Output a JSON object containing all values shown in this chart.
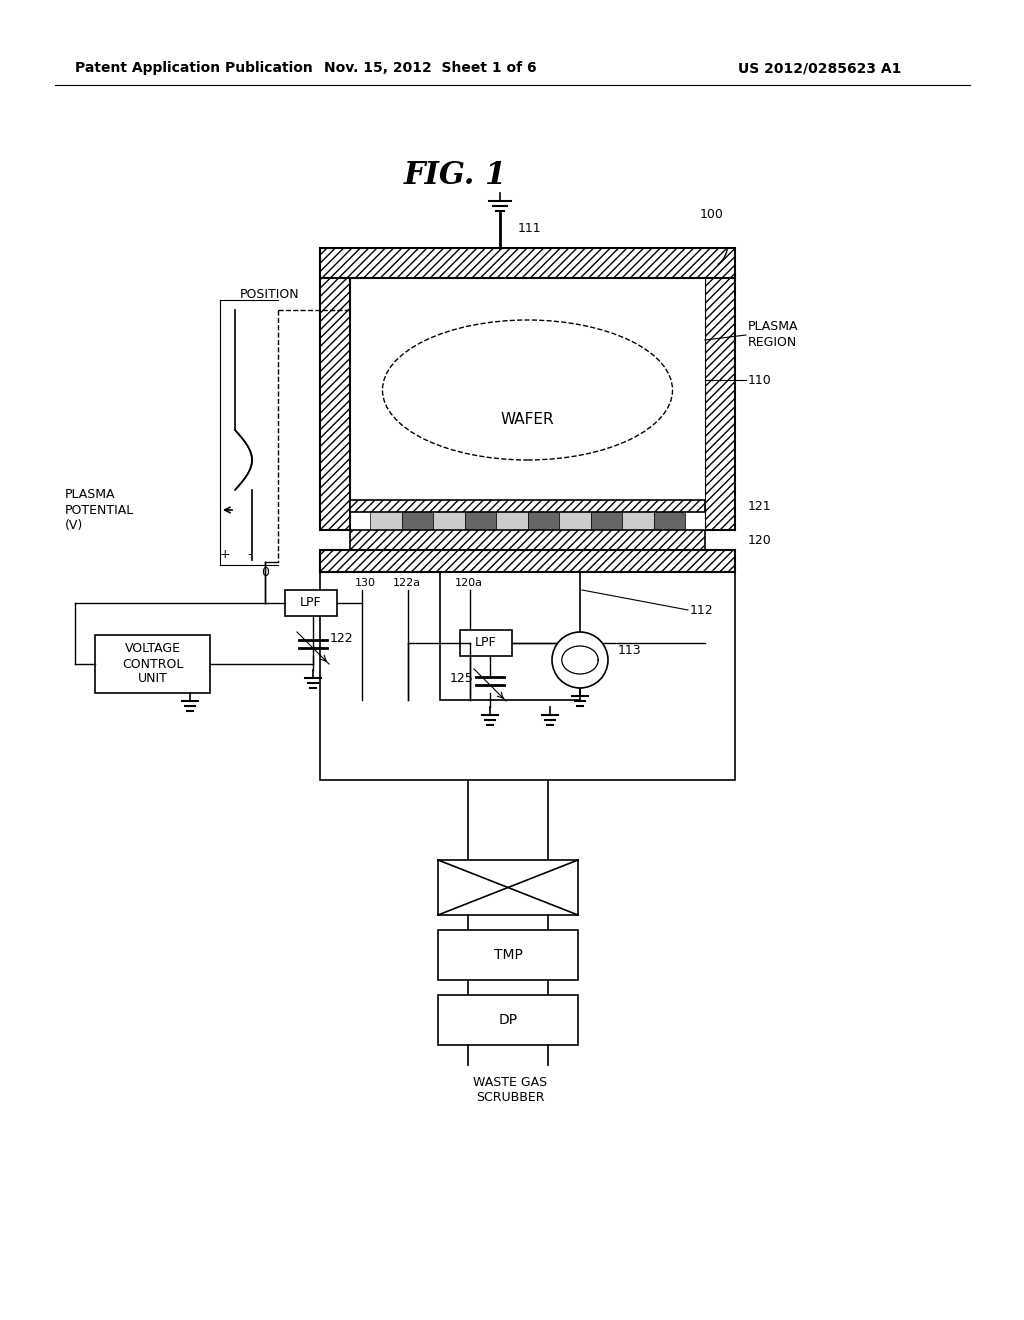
{
  "bg_color": "#ffffff",
  "line_color": "#000000",
  "header_left": "Patent Application Publication",
  "header_mid": "Nov. 15, 2012  Sheet 1 of 6",
  "header_right": "US 2012/0285623 A1",
  "fig_title": "FIG. 1"
}
